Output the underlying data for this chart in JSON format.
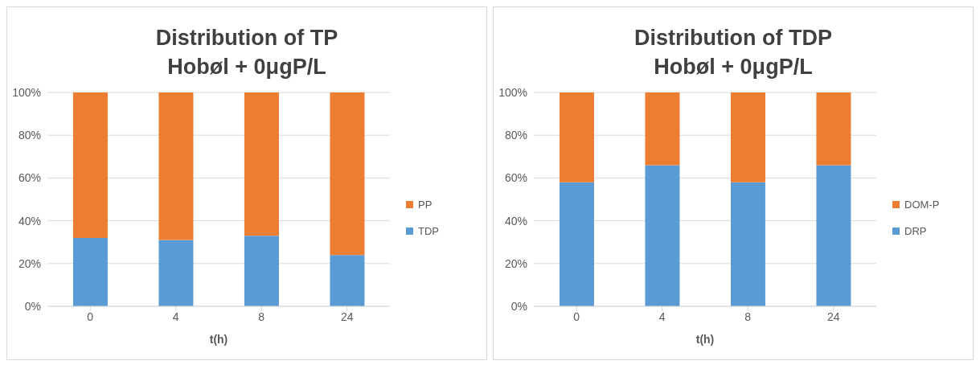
{
  "chart_data": [
    {
      "type": "bar",
      "title": "Distribution of TP",
      "subtitle": "Hobøl + 0μgP/L",
      "xlabel": "t(h)",
      "categories": [
        "0",
        "4",
        "8",
        "24"
      ],
      "stacked": true,
      "grid": "y",
      "legend": "right",
      "series": [
        {
          "name": "TDP",
          "color": "#5b9bd5",
          "values": [
            32,
            31,
            33,
            24
          ]
        },
        {
          "name": "PP",
          "color": "#ed7d31",
          "values": [
            68,
            69,
            67,
            76
          ]
        }
      ],
      "ylim": [
        0,
        100
      ],
      "yticks": [
        {
          "value": 0,
          "label": "0%"
        },
        {
          "value": 20,
          "label": "20%"
        },
        {
          "value": 40,
          "label": "40%"
        },
        {
          "value": 60,
          "label": "60%"
        },
        {
          "value": 80,
          "label": "80%"
        },
        {
          "value": 100,
          "label": "100%"
        }
      ]
    },
    {
      "type": "bar",
      "title": "Distribution of TDP",
      "subtitle": "Hobøl + 0μgP/L",
      "xlabel": "t(h)",
      "categories": [
        "0",
        "4",
        "8",
        "24"
      ],
      "stacked": true,
      "grid": "y",
      "legend": "right",
      "series": [
        {
          "name": "DRP",
          "color": "#5b9bd5",
          "values": [
            58,
            66,
            58,
            66
          ]
        },
        {
          "name": "DOM-P",
          "color": "#ed7d31",
          "values": [
            42,
            34,
            42,
            34
          ]
        }
      ],
      "ylim": [
        0,
        100
      ],
      "yticks": [
        {
          "value": 0,
          "label": "0%"
        },
        {
          "value": 20,
          "label": "20%"
        },
        {
          "value": 40,
          "label": "40%"
        },
        {
          "value": 60,
          "label": "60%"
        },
        {
          "value": 80,
          "label": "80%"
        },
        {
          "value": 100,
          "label": "100%"
        }
      ]
    }
  ]
}
